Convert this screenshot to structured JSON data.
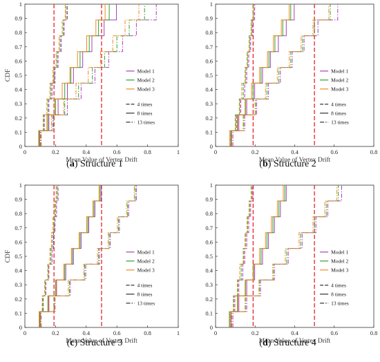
{
  "chart_data": [
    {
      "type": "line",
      "subtype": "step-cdf",
      "caption_label": "a",
      "caption_text": "Structure 1",
      "xlabel": "Mean Value of Vertex Drift",
      "ylabel": "CDF",
      "xlim": [
        0,
        1
      ],
      "ylim": [
        0,
        1
      ],
      "xticks": [
        "0",
        "0.2",
        "0.4",
        "0.6",
        "0.8",
        "1"
      ],
      "yticks": [
        "0",
        "0.1",
        "0.2",
        "0.3",
        "0.4",
        "0.5",
        "0.6",
        "0.7",
        "0.8",
        "0.9",
        "1"
      ],
      "reference_lines_x": [
        0.19,
        0.5
      ],
      "legend": {
        "position": "right-middle",
        "models": [
          "Model 1",
          "Model 2",
          "Model 3"
        ],
        "line_styles": [
          "4 times",
          "8 times",
          "13 times"
        ]
      },
      "series": [
        {
          "model": "Model 1",
          "style": "4 times",
          "x": [
            0.1,
            0.13,
            0.16,
            0.18,
            0.2,
            0.22,
            0.24,
            0.26,
            0.28
          ]
        },
        {
          "model": "Model 2",
          "style": "4 times",
          "x": [
            0.09,
            0.12,
            0.15,
            0.17,
            0.19,
            0.21,
            0.23,
            0.25,
            0.27
          ]
        },
        {
          "model": "Model 3",
          "style": "4 times",
          "x": [
            0.09,
            0.12,
            0.14,
            0.16,
            0.18,
            0.2,
            0.22,
            0.24,
            0.26
          ]
        },
        {
          "model": "Model 1",
          "style": "8 times",
          "x": [
            0.1,
            0.16,
            0.22,
            0.28,
            0.32,
            0.38,
            0.44,
            0.52,
            0.6
          ]
        },
        {
          "model": "Model 2",
          "style": "8 times",
          "x": [
            0.09,
            0.15,
            0.2,
            0.26,
            0.3,
            0.36,
            0.42,
            0.48,
            0.55
          ]
        },
        {
          "model": "Model 3",
          "style": "8 times",
          "x": [
            0.09,
            0.14,
            0.19,
            0.24,
            0.29,
            0.34,
            0.4,
            0.46,
            0.52
          ]
        },
        {
          "model": "Model 1",
          "style": "13 times",
          "x": [
            0.11,
            0.19,
            0.28,
            0.37,
            0.46,
            0.55,
            0.64,
            0.73,
            0.86
          ]
        },
        {
          "model": "Model 2",
          "style": "13 times",
          "x": [
            0.1,
            0.18,
            0.26,
            0.35,
            0.44,
            0.52,
            0.6,
            0.68,
            0.78
          ]
        },
        {
          "model": "Model 3",
          "style": "13 times",
          "x": [
            0.1,
            0.17,
            0.25,
            0.33,
            0.41,
            0.49,
            0.57,
            0.65,
            0.74
          ]
        }
      ]
    },
    {
      "type": "line",
      "subtype": "step-cdf",
      "caption_label": "b",
      "caption_text": "Structure 2",
      "xlabel": "Mean Value of Vertex Drift",
      "ylabel": "",
      "xlim": [
        0,
        0.8
      ],
      "ylim": [
        0,
        1
      ],
      "xticks": [
        "0",
        "0.2",
        "0.4",
        "0.6",
        "0.8"
      ],
      "yticks": [
        "0",
        "0.1",
        "0.2",
        "0.3",
        "0.4",
        "0.5",
        "0.6",
        "0.7",
        "0.8",
        "0.9",
        "1"
      ],
      "reference_lines_x": [
        0.19,
        0.5
      ],
      "legend": {
        "position": "right-middle",
        "models": [
          "Model 1",
          "Model 2",
          "Model 3"
        ],
        "line_styles": [
          "4 times",
          "8 times",
          "13 times"
        ]
      },
      "series": [
        {
          "model": "Model 1",
          "style": "4 times",
          "x": [
            0.08,
            0.11,
            0.13,
            0.15,
            0.16,
            0.17,
            0.18,
            0.19,
            0.2
          ]
        },
        {
          "model": "Model 2",
          "style": "4 times",
          "x": [
            0.08,
            0.1,
            0.12,
            0.14,
            0.15,
            0.16,
            0.17,
            0.18,
            0.19
          ]
        },
        {
          "model": "Model 3",
          "style": "4 times",
          "x": [
            0.07,
            0.1,
            0.12,
            0.13,
            0.15,
            0.16,
            0.17,
            0.18,
            0.19
          ]
        },
        {
          "model": "Model 1",
          "style": "8 times",
          "x": [
            0.08,
            0.12,
            0.16,
            0.2,
            0.24,
            0.28,
            0.32,
            0.36,
            0.4
          ]
        },
        {
          "model": "Model 2",
          "style": "8 times",
          "x": [
            0.08,
            0.11,
            0.15,
            0.19,
            0.23,
            0.27,
            0.3,
            0.34,
            0.38
          ]
        },
        {
          "model": "Model 3",
          "style": "8 times",
          "x": [
            0.07,
            0.11,
            0.15,
            0.18,
            0.22,
            0.26,
            0.29,
            0.33,
            0.37
          ]
        },
        {
          "model": "Model 1",
          "style": "13 times",
          "x": [
            0.09,
            0.15,
            0.21,
            0.27,
            0.33,
            0.39,
            0.45,
            0.52,
            0.62
          ]
        },
        {
          "model": "Model 2",
          "style": "13 times",
          "x": [
            0.08,
            0.14,
            0.2,
            0.26,
            0.32,
            0.38,
            0.44,
            0.5,
            0.58
          ]
        },
        {
          "model": "Model 3",
          "style": "13 times",
          "x": [
            0.08,
            0.14,
            0.2,
            0.25,
            0.31,
            0.37,
            0.43,
            0.49,
            0.57
          ]
        }
      ]
    },
    {
      "type": "line",
      "subtype": "step-cdf",
      "caption_label": "c",
      "caption_text": "Structure 3",
      "xlabel": "Mean Value of Vertex Drift",
      "ylabel": "CDF",
      "xlim": [
        0,
        1
      ],
      "ylim": [
        0,
        1
      ],
      "xticks": [
        "0",
        "0.2",
        "0.4",
        "0.6",
        "0.8",
        "1"
      ],
      "yticks": [
        "0",
        "0.1",
        "0.2",
        "0.3",
        "0.4",
        "0.5",
        "0.6",
        "0.7",
        "0.8",
        "0.9",
        "1"
      ],
      "reference_lines_x": [
        0.19,
        0.5
      ],
      "legend": {
        "position": "right-middle",
        "models": [
          "Model 1",
          "Model 2",
          "Model 3"
        ],
        "line_styles": [
          "4 times",
          "8 times",
          "13 times"
        ]
      },
      "series": [
        {
          "model": "Model 1",
          "style": "4 times",
          "x": [
            0.1,
            0.12,
            0.14,
            0.16,
            0.18,
            0.19,
            0.2,
            0.21,
            0.22
          ]
        },
        {
          "model": "Model 2",
          "style": "4 times",
          "x": [
            0.1,
            0.12,
            0.13,
            0.15,
            0.17,
            0.18,
            0.19,
            0.2,
            0.21
          ]
        },
        {
          "model": "Model 3",
          "style": "4 times",
          "x": [
            0.09,
            0.11,
            0.13,
            0.15,
            0.16,
            0.17,
            0.18,
            0.19,
            0.2
          ]
        },
        {
          "model": "Model 1",
          "style": "8 times",
          "x": [
            0.1,
            0.16,
            0.21,
            0.27,
            0.32,
            0.37,
            0.42,
            0.46,
            0.5
          ]
        },
        {
          "model": "Model 2",
          "style": "8 times",
          "x": [
            0.1,
            0.15,
            0.2,
            0.26,
            0.31,
            0.36,
            0.41,
            0.45,
            0.49
          ]
        },
        {
          "model": "Model 3",
          "style": "8 times",
          "x": [
            0.09,
            0.15,
            0.2,
            0.25,
            0.3,
            0.35,
            0.4,
            0.44,
            0.48
          ]
        },
        {
          "model": "Model 1",
          "style": "13 times",
          "x": [
            0.11,
            0.2,
            0.3,
            0.4,
            0.49,
            0.56,
            0.62,
            0.68,
            0.73
          ]
        },
        {
          "model": "Model 2",
          "style": "13 times",
          "x": [
            0.1,
            0.19,
            0.29,
            0.39,
            0.48,
            0.55,
            0.61,
            0.67,
            0.72
          ]
        },
        {
          "model": "Model 3",
          "style": "13 times",
          "x": [
            0.1,
            0.19,
            0.28,
            0.38,
            0.47,
            0.54,
            0.6,
            0.66,
            0.71
          ]
        }
      ]
    },
    {
      "type": "line",
      "subtype": "step-cdf",
      "caption_label": "d",
      "caption_text": "Structure 4",
      "xlabel": "Mean Value of Vertex Drift",
      "ylabel": "",
      "xlim": [
        0,
        0.8
      ],
      "ylim": [
        0,
        1
      ],
      "xticks": [
        "0",
        "0.2",
        "0.4",
        "0.6",
        "0.8"
      ],
      "yticks": [
        "0",
        "0.1",
        "0.2",
        "0.3",
        "0.4",
        "0.5",
        "0.6",
        "0.7",
        "0.8",
        "0.9",
        "1"
      ],
      "reference_lines_x": [
        0.19,
        0.5
      ],
      "legend": {
        "position": "right-middle",
        "models": [
          "Model 1",
          "Model 2",
          "Model 3"
        ],
        "line_styles": [
          "4 times",
          "8 times",
          "13 times"
        ]
      },
      "series": [
        {
          "model": "Model 1",
          "style": "4 times",
          "x": [
            0.08,
            0.1,
            0.12,
            0.14,
            0.15,
            0.16,
            0.17,
            0.18,
            0.19
          ]
        },
        {
          "model": "Model 2",
          "style": "4 times",
          "x": [
            0.07,
            0.09,
            0.11,
            0.13,
            0.14,
            0.15,
            0.16,
            0.17,
            0.18
          ]
        },
        {
          "model": "Model 3",
          "style": "4 times",
          "x": [
            0.07,
            0.09,
            0.11,
            0.12,
            0.14,
            0.15,
            0.16,
            0.17,
            0.18
          ]
        },
        {
          "model": "Model 1",
          "style": "8 times",
          "x": [
            0.08,
            0.12,
            0.16,
            0.2,
            0.24,
            0.27,
            0.3,
            0.33,
            0.36
          ]
        },
        {
          "model": "Model 2",
          "style": "8 times",
          "x": [
            0.07,
            0.11,
            0.15,
            0.19,
            0.23,
            0.26,
            0.29,
            0.32,
            0.35
          ]
        },
        {
          "model": "Model 3",
          "style": "8 times",
          "x": [
            0.07,
            0.11,
            0.15,
            0.19,
            0.22,
            0.25,
            0.28,
            0.31,
            0.34
          ]
        },
        {
          "model": "Model 1",
          "style": "13 times",
          "x": [
            0.09,
            0.16,
            0.23,
            0.3,
            0.37,
            0.44,
            0.51,
            0.57,
            0.64
          ]
        },
        {
          "model": "Model 2",
          "style": "13 times",
          "x": [
            0.08,
            0.15,
            0.22,
            0.29,
            0.36,
            0.43,
            0.5,
            0.56,
            0.62
          ]
        },
        {
          "model": "Model 3",
          "style": "13 times",
          "x": [
            0.08,
            0.15,
            0.22,
            0.29,
            0.35,
            0.42,
            0.49,
            0.55,
            0.61
          ]
        }
      ]
    }
  ],
  "colors": {
    "Model 1": "#a640b4",
    "Model 2": "#2ea02e",
    "Model 3": "#f08a1c",
    "reference": "#e8202a",
    "axis": "#333333"
  }
}
